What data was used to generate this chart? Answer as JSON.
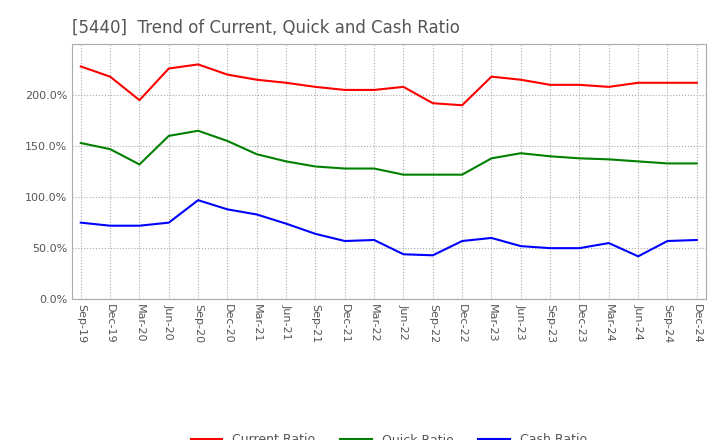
{
  "title": "[5440]  Trend of Current, Quick and Cash Ratio",
  "x_labels": [
    "Sep-19",
    "Dec-19",
    "Mar-20",
    "Jun-20",
    "Sep-20",
    "Dec-20",
    "Mar-21",
    "Jun-21",
    "Sep-21",
    "Dec-21",
    "Mar-22",
    "Jun-22",
    "Sep-22",
    "Dec-22",
    "Mar-23",
    "Jun-23",
    "Sep-23",
    "Dec-23",
    "Mar-24",
    "Jun-24",
    "Sep-24",
    "Dec-24"
  ],
  "current_ratio": [
    2.28,
    2.18,
    1.95,
    2.26,
    2.3,
    2.2,
    2.15,
    2.12,
    2.08,
    2.05,
    2.05,
    2.08,
    1.92,
    1.9,
    2.18,
    2.15,
    2.1,
    2.1,
    2.08,
    2.12,
    2.12,
    2.12
  ],
  "quick_ratio": [
    1.53,
    1.47,
    1.32,
    1.6,
    1.65,
    1.55,
    1.42,
    1.35,
    1.3,
    1.28,
    1.28,
    1.22,
    1.22,
    1.22,
    1.38,
    1.43,
    1.4,
    1.38,
    1.37,
    1.35,
    1.33,
    1.33
  ],
  "cash_ratio": [
    0.75,
    0.72,
    0.72,
    0.75,
    0.97,
    0.88,
    0.83,
    0.74,
    0.64,
    0.57,
    0.58,
    0.44,
    0.43,
    0.57,
    0.6,
    0.52,
    0.5,
    0.5,
    0.55,
    0.42,
    0.57,
    0.58
  ],
  "current_color": "#ff0000",
  "quick_color": "#008000",
  "cash_color": "#0000ff",
  "ylim": [
    0.0,
    2.5
  ],
  "yticks": [
    0.0,
    0.5,
    1.0,
    1.5,
    2.0
  ],
  "ytick_labels": [
    "0.0%",
    "50.0%",
    "100.0%",
    "150.0%",
    "200.0%"
  ],
  "background_color": "#ffffff",
  "grid_color": "#aaaaaa",
  "title_fontsize": 12,
  "legend_fontsize": 9,
  "tick_fontsize": 8
}
